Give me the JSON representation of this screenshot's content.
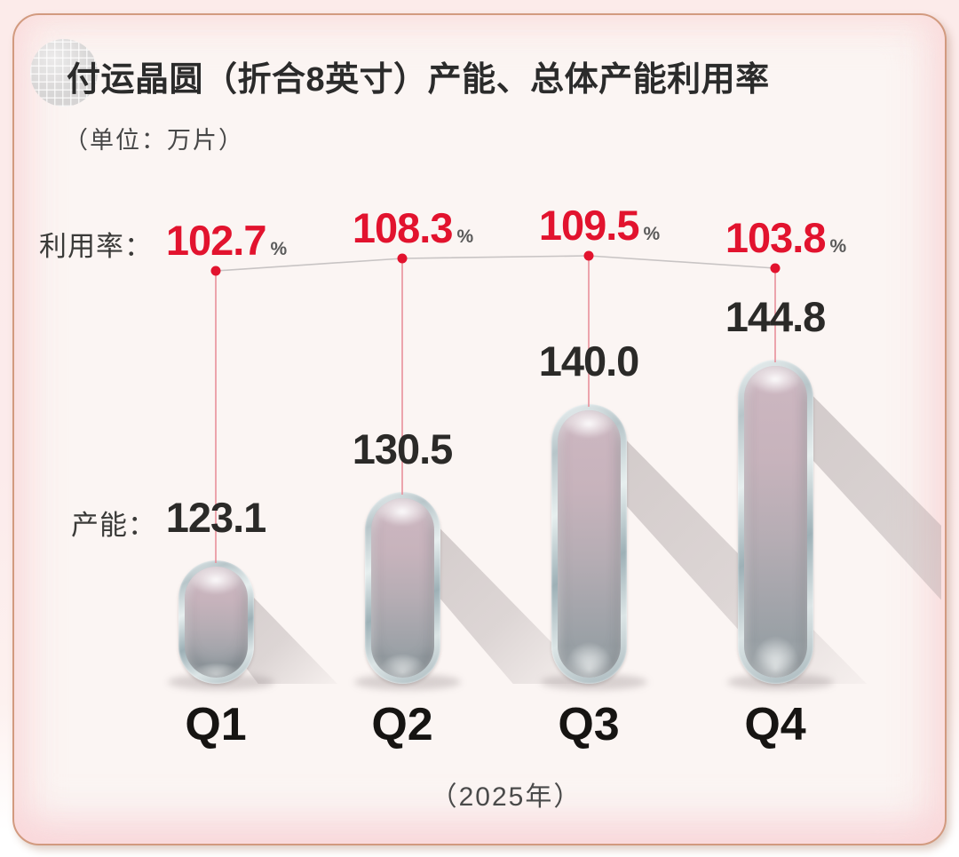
{
  "header": {
    "title": "付运晶圆（折合8英寸）产能、总体产能利用率",
    "subtitle": "（单位：万片）",
    "wafer_icon": "wafer-grid-icon"
  },
  "rows": {
    "utilization_label": "利用率：",
    "capacity_label": "产能："
  },
  "symbols": {
    "percent": "%"
  },
  "footer": {
    "year": "（2025年）"
  },
  "chart_data": {
    "type": "bar",
    "categories": [
      "Q1",
      "Q2",
      "Q3",
      "Q4"
    ],
    "series": [
      {
        "name": "付运晶圆（折合8英寸）产能",
        "unit": "万片",
        "values": [
          123.1,
          130.5,
          140.0,
          144.8
        ],
        "display": [
          "123.1",
          "130.5",
          "140.0",
          "144.8"
        ]
      },
      {
        "name": "总体产能利用率",
        "unit": "%",
        "values": [
          102.7,
          108.3,
          109.5,
          103.8
        ],
        "display": [
          "102.7",
          "108.3",
          "109.5",
          "103.8"
        ]
      }
    ],
    "title": "付运晶圆（折合8英寸）产能、总体产能利用率",
    "xlabel": "（2025年）",
    "legend": "none",
    "grid": false,
    "colors": {
      "rate_value": "#e2132e",
      "rate_dot": "#e2132e",
      "drop_line": "#e98f9a",
      "connector_line": "#c8c4c4",
      "capacity_value": "#2b2a28",
      "bar_shadow": "#968c8e",
      "card_border": "#d29a7f",
      "background": "#fcebea"
    }
  }
}
